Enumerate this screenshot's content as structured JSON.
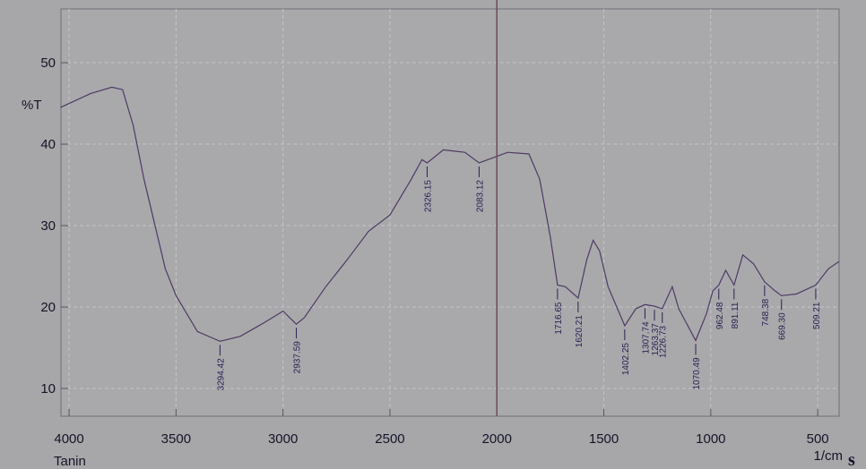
{
  "chart_data": {
    "type": "line",
    "x_label": "1/cm",
    "y_label": "%T",
    "sample_label": "Tanin",
    "side_label": "s",
    "x": [
      4040,
      3900,
      3800,
      3750,
      3700,
      3650,
      3600,
      3550,
      3500,
      3400,
      3294.42,
      3200,
      3100,
      3000,
      2937.59,
      2900,
      2800,
      2700,
      2600,
      2500,
      2400,
      2350,
      2326.15,
      2250,
      2150,
      2083.12,
      2000,
      1950,
      1850,
      1800,
      1750,
      1716.65,
      1680,
      1620.21,
      1580,
      1550,
      1520,
      1480,
      1402.25,
      1350,
      1307.74,
      1263.37,
      1226.73,
      1180,
      1150,
      1070.49,
      1020,
      990,
      962.48,
      930,
      891.11,
      850,
      800,
      748.38,
      700,
      669.3,
      600,
      509.21,
      450,
      400
    ],
    "series": [
      {
        "name": "Tanin",
        "color": "#4f3a63",
        "values": [
          44.5,
          46.2,
          47.0,
          46.7,
          42.3,
          35.7,
          30.2,
          24.7,
          21.4,
          17.0,
          15.8,
          16.4,
          17.9,
          19.5,
          17.9,
          18.7,
          22.5,
          25.8,
          29.3,
          31.3,
          35.7,
          38.1,
          37.7,
          39.3,
          39.0,
          37.7,
          38.5,
          39.0,
          38.8,
          35.7,
          28.6,
          22.7,
          22.5,
          21.1,
          25.8,
          28.2,
          26.9,
          22.5,
          17.7,
          19.8,
          20.3,
          20.1,
          19.8,
          22.5,
          19.8,
          15.9,
          19.2,
          22.0,
          22.7,
          24.5,
          22.7,
          26.4,
          25.3,
          23.1,
          22.0,
          21.4,
          21.6,
          22.7,
          24.7,
          25.6
        ]
      }
    ],
    "peaks": [
      3294.42,
      2937.59,
      2326.15,
      2083.12,
      1716.65,
      1620.21,
      1402.25,
      1307.74,
      1263.37,
      1226.73,
      1070.49,
      962.48,
      891.11,
      748.38,
      {
        "value": 669.3,
        "label": "669.30"
      },
      509.21
    ],
    "xlim": [
      4038,
      400
    ],
    "ylim": [
      6.6,
      56.6
    ],
    "xticks": [
      4000,
      3500,
      3000,
      2500,
      2000,
      1500,
      1000,
      500
    ],
    "yticks": [
      10,
      20,
      30,
      40,
      50
    ],
    "grid": true
  }
}
